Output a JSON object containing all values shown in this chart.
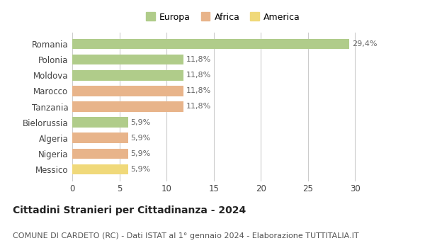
{
  "countries": [
    "Messico",
    "Nigeria",
    "Algeria",
    "Bielorussia",
    "Tanzania",
    "Marocco",
    "Moldova",
    "Polonia",
    "Romania"
  ],
  "values": [
    5.9,
    5.9,
    5.9,
    5.9,
    11.8,
    11.8,
    11.8,
    11.8,
    29.4
  ],
  "labels": [
    "5,9%",
    "5,9%",
    "5,9%",
    "5,9%",
    "11,8%",
    "11,8%",
    "11,8%",
    "11,8%",
    "29,4%"
  ],
  "colors": [
    "#f0d97a",
    "#e8b48a",
    "#e8b48a",
    "#b0cc8a",
    "#e8b48a",
    "#e8b48a",
    "#b0cc8a",
    "#b0cc8a",
    "#b0cc8a"
  ],
  "legend": [
    {
      "label": "Europa",
      "color": "#b0cc8a"
    },
    {
      "label": "Africa",
      "color": "#e8b48a"
    },
    {
      "label": "America",
      "color": "#f0d97a"
    }
  ],
  "xlim": [
    0,
    32
  ],
  "xticks": [
    0,
    5,
    10,
    15,
    20,
    25,
    30
  ],
  "title": "Cittadini Stranieri per Cittadinanza - 2024",
  "subtitle": "COMUNE DI CARDETO (RC) - Dati ISTAT al 1° gennaio 2024 - Elaborazione TUTTITALIA.IT",
  "background_color": "#ffffff",
  "grid_color": "#cccccc",
  "bar_height": 0.65,
  "label_fontsize": 8,
  "title_fontsize": 10,
  "subtitle_fontsize": 8,
  "ytick_fontsize": 8.5,
  "xtick_fontsize": 8.5
}
